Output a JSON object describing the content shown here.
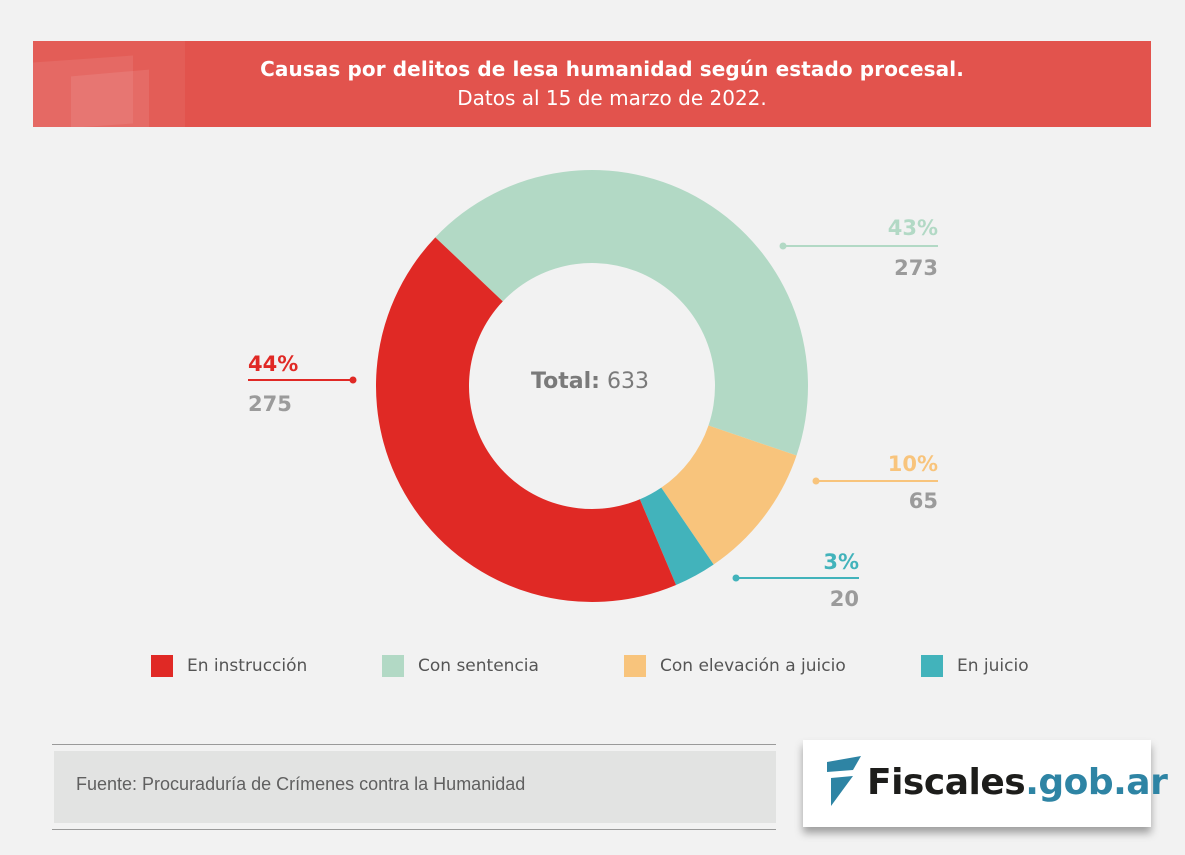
{
  "header": {
    "title": "Causas por delitos de lesa humanidad según estado procesal.",
    "subtitle": "Datos al 15 de marzo de 2022."
  },
  "chart_data": {
    "type": "pie",
    "variant": "donut",
    "title": "Causas por delitos de lesa humanidad según estado procesal.",
    "subtitle": "Datos al 15 de marzo de 2022.",
    "center_label": {
      "prefix": "Total:",
      "value": "633"
    },
    "total": 633,
    "slices": [
      {
        "name": "Con sentencia",
        "value": 273,
        "percent_label": "43%",
        "count_label": "273",
        "color": "#b2d9c5"
      },
      {
        "name": "Con elevación a juicio",
        "value": 65,
        "percent_label": "10%",
        "count_label": "65",
        "color": "#f8c47c"
      },
      {
        "name": "En juicio",
        "value": 20,
        "percent_label": "3%",
        "count_label": "20",
        "color": "#42b3bb"
      },
      {
        "name": "En instrucción",
        "value": 275,
        "percent_label": "44%",
        "count_label": "275",
        "color": "#e02925"
      }
    ],
    "legend": [
      "En instrucción",
      "Con sentencia",
      "Con elevación a juicio",
      "En juicio"
    ],
    "legend_position": "bottom",
    "start_slice": "Con sentencia",
    "direction": "clockwise"
  },
  "legend": [
    {
      "label": "En instrucción",
      "color": "#e02925"
    },
    {
      "label": "Con sentencia",
      "color": "#b2d9c5"
    },
    {
      "label": "Con elevación a juicio",
      "color": "#f8c47c"
    },
    {
      "label": "En juicio",
      "color": "#42b3bb"
    }
  ],
  "footer": {
    "source": "Fuente: Procuraduría de Crímenes contra la Humanidad",
    "logo_name": "Fiscales",
    "logo_domain": ".gob.ar",
    "logo_color": "#2e84a4"
  }
}
